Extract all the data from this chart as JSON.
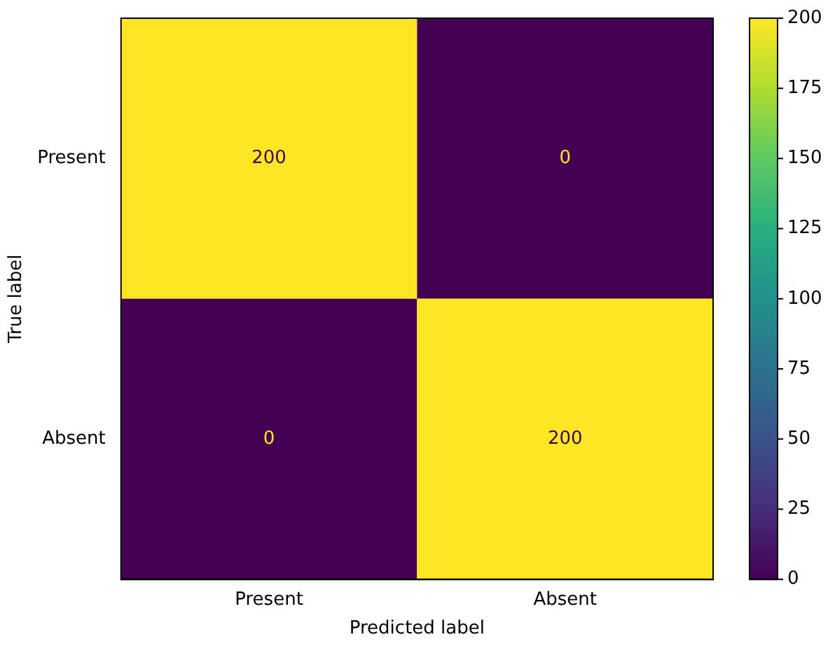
{
  "chart_data": {
    "type": "heatmap",
    "xlabel": "Predicted label",
    "ylabel": "True label",
    "categories": [
      "Present",
      "Absent"
    ],
    "y_categories": [
      "Present",
      "Absent"
    ],
    "cells": [
      [
        200,
        0
      ],
      [
        0,
        200
      ]
    ],
    "clim": [
      0,
      200
    ],
    "cticks": [
      0,
      25,
      50,
      75,
      100,
      125,
      150,
      175,
      200
    ],
    "data_labels": true
  }
}
